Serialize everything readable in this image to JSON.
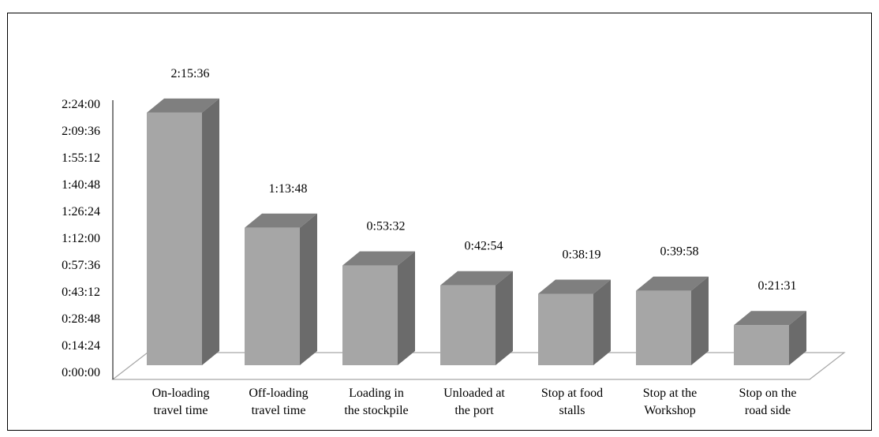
{
  "chart_data": {
    "type": "bar",
    "style": "3d-column",
    "title": "",
    "xlabel": "",
    "ylabel": "",
    "categories": [
      [
        "On-loading",
        "travel time"
      ],
      [
        "Off-loading",
        "travel time"
      ],
      [
        "Loading in",
        "the stockpile"
      ],
      [
        "Unloaded at",
        "the port"
      ],
      [
        "Stop at food",
        "stalls"
      ],
      [
        "Stop at the",
        "Workshop"
      ],
      [
        "Stop on the",
        "road side"
      ]
    ],
    "values_seconds": [
      8136,
      4428,
      3212,
      2574,
      2299,
      2398,
      1291
    ],
    "data_labels": [
      "2:15:36",
      "1:13:48",
      "0:53:32",
      "0:42:54",
      "0:38:19",
      "0:39:58",
      "0:21:31"
    ],
    "ylim_seconds": [
      0,
      8640
    ],
    "y_ticks": [
      "0:00:00",
      "0:14:24",
      "0:28:48",
      "0:43:12",
      "0:57:36",
      "1:12:00",
      "1:26:24",
      "1:40:48",
      "1:55:12",
      "2:09:36",
      "2:24:00"
    ],
    "grid": false,
    "legend": "none",
    "colors": {
      "bar_front": "#a6a6a6",
      "bar_top": "#7f7f7f",
      "bar_side": "#6b6b6b",
      "floor_line": "#a6a6a6",
      "axis": "#000000"
    }
  }
}
